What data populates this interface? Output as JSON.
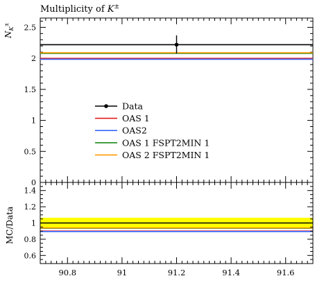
{
  "chart_data": {
    "type": "line",
    "title_prefix": "Multiplicity of ",
    "title_symbol": "K",
    "title_sup": "±",
    "ylabel_main": "N",
    "ylabel_main_sub": "K",
    "ylabel_main_sup": "±",
    "ylabel_ratio": "MC/Data",
    "xlim": [
      90.7,
      91.7
    ],
    "ylim_main": [
      0,
      2.65
    ],
    "ylim_ratio": [
      0.5,
      1.5
    ],
    "x_ticks": [
      "90.8",
      "91",
      "91.2",
      "91.4",
      "91.6"
    ],
    "y_ticks_main": [
      "0",
      "0.5",
      "1",
      "1.5",
      "2",
      "2.5"
    ],
    "y_ticks_ratio": [
      "0.6",
      "0.8",
      "1",
      "1.2",
      "1.4"
    ],
    "data_point": {
      "name": "Data",
      "x": 91.2,
      "y": 2.22,
      "yerr_up": 0.15,
      "yerr_down": 0.14
    },
    "series": [
      {
        "name": "Data",
        "value": 2.22,
        "color": "#000000",
        "ratio": 1.0,
        "marker": true
      },
      {
        "name": "OAS 1",
        "value": 2.0,
        "color": "#e41a1c",
        "ratio": 0.9
      },
      {
        "name": "OAS2",
        "value": 1.985,
        "color": "#3366ff",
        "ratio": 0.895
      },
      {
        "name": "OAS 1 FSPT2MIN 1",
        "value": 2.08,
        "color": "#1a8c1a",
        "ratio": 0.935
      },
      {
        "name": "OAS 2 FSPT2MIN 1",
        "value": 2.09,
        "color": "#ff9900",
        "ratio": 0.94
      }
    ],
    "ratio_band": {
      "low": 0.935,
      "high": 1.065,
      "color": "#ffff00"
    },
    "legend_placement": "center-left"
  }
}
